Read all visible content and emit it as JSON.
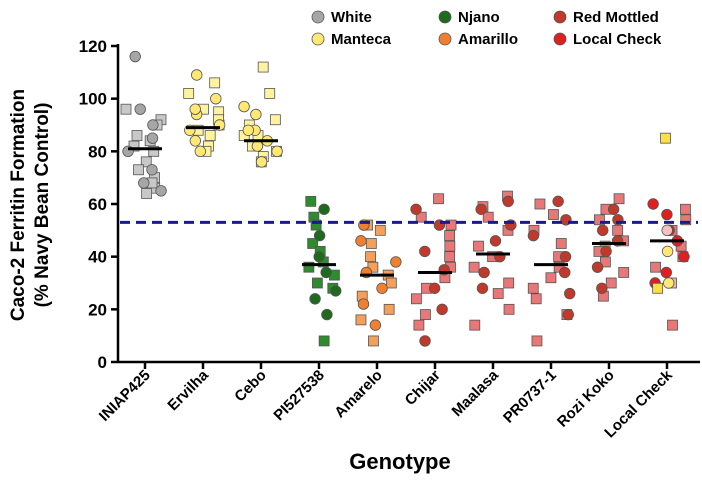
{
  "chart_data": {
    "type": "scatter",
    "title": "",
    "xlabel": "Genotype",
    "ylabel_line1": "Caco-2 Ferritin Formation",
    "ylabel_line2": "(% Navy Bean Control)",
    "ylim": [
      0,
      120
    ],
    "yticks": [
      0,
      20,
      40,
      60,
      80,
      100,
      120
    ],
    "reference_line": {
      "value": 53,
      "color": "#1a1a8c",
      "style": "dashed"
    },
    "legend": [
      {
        "label": "White",
        "color": "#a6a6a6"
      },
      {
        "label": "Njano",
        "color": "#1e6b1e"
      },
      {
        "label": "Red Mottled",
        "color": "#c0392b"
      },
      {
        "label": "Manteca",
        "color": "#ffe873"
      },
      {
        "label": "Amarillo",
        "color": "#f08030"
      },
      {
        "label": "Local Check",
        "color": "#e02020"
      }
    ],
    "categories": [
      "INIAP425",
      "Ervilha",
      "Cebo",
      "PI527538",
      "Amarelo",
      "Chijar",
      "Maalasa",
      "PR0737-1",
      "Rozi Koko",
      "Local Check"
    ],
    "series": [
      {
        "category": "INIAP425",
        "class": "White",
        "square_color": "#c8c8c8",
        "circle_color": "#a6a6a6",
        "mean": 81,
        "squares": [
          96,
          92,
          86,
          82,
          80,
          76,
          73,
          70,
          66,
          64,
          68,
          84,
          90
        ],
        "circles": [
          116,
          96,
          90,
          85,
          80,
          73,
          68,
          65
        ]
      },
      {
        "category": "Ervilha",
        "class": "Manteca",
        "square_color": "#fff3a0",
        "circle_color": "#ffe873",
        "mean": 89,
        "squares": [
          106,
          102,
          96,
          90,
          86,
          82,
          80,
          95,
          92,
          88
        ],
        "circles": [
          109,
          100,
          94,
          88,
          84,
          80,
          96,
          90
        ]
      },
      {
        "category": "Cebo",
        "class": "Manteca",
        "square_color": "#fff3a0",
        "circle_color": "#ffe873",
        "mean": 84,
        "squares": [
          112,
          102,
          92,
          86,
          82,
          78,
          76,
          86,
          90,
          80
        ],
        "circles": [
          97,
          94,
          88,
          84,
          80,
          76,
          88,
          82
        ]
      },
      {
        "category": "PI527538",
        "class": "Njano",
        "square_color": "#2e8b2e",
        "circle_color": "#1e6b1e",
        "mean": 37,
        "squares": [
          61,
          55,
          52,
          45,
          42,
          38,
          36,
          33,
          30,
          28,
          8
        ],
        "circles": [
          58,
          48,
          40,
          34,
          27,
          24,
          18
        ]
      },
      {
        "category": "Amarelo",
        "class": "Amarillo",
        "square_color": "#f5a05a",
        "circle_color": "#f08030",
        "mean": 33,
        "squares": [
          52,
          50,
          45,
          40,
          36,
          33,
          30,
          25,
          20,
          16,
          8
        ],
        "circles": [
          52,
          46,
          38,
          34,
          28,
          22,
          14
        ]
      },
      {
        "category": "Chijar",
        "class": "Red Mottled",
        "square_color": "#e87878",
        "circle_color": "#c0392b",
        "mean": 34,
        "squares": [
          62,
          55,
          52,
          48,
          44,
          40,
          36,
          32,
          28,
          24,
          18,
          14
        ],
        "circles": [
          58,
          52,
          42,
          35,
          28,
          20,
          8
        ]
      },
      {
        "category": "Maalasa",
        "class": "Red Mottled",
        "square_color": "#e87878",
        "circle_color": "#c0392b",
        "mean": 41,
        "squares": [
          63,
          59,
          55,
          50,
          44,
          40,
          36,
          30,
          26,
          20,
          14
        ],
        "circles": [
          61,
          58,
          52,
          46,
          40,
          34,
          28
        ]
      },
      {
        "category": "PR0737-1",
        "class": "Red Mottled",
        "square_color": "#e87878",
        "circle_color": "#c0392b",
        "mean": 37,
        "squares": [
          60,
          56,
          50,
          45,
          40,
          36,
          32,
          28,
          24,
          18,
          8
        ],
        "circles": [
          61,
          54,
          48,
          40,
          34,
          26,
          18
        ]
      },
      {
        "category": "Rozi Koko",
        "class": "Red Mottled",
        "square_color": "#e87878",
        "circle_color": "#c0392b",
        "mean": 45,
        "squares": [
          62,
          58,
          54,
          50,
          46,
          44,
          42,
          38,
          34,
          30,
          25
        ],
        "circles": [
          58,
          54,
          50,
          46,
          42,
          36,
          28
        ]
      },
      {
        "category": "Local Check",
        "class": "Local Check",
        "square_color": "#e87878",
        "circle_color": "#e02020",
        "mean": 46,
        "squares": [
          58,
          54,
          50,
          44,
          40,
          36,
          14
        ],
        "circles": [
          60,
          56,
          50,
          46,
          40,
          34,
          30
        ],
        "extra_squares": [
          {
            "value": 85,
            "color": "#ffe040"
          },
          {
            "value": 28,
            "color": "#ffe040"
          },
          {
            "value": 30,
            "color": "#f7b0b0"
          }
        ],
        "extra_circles": [
          {
            "value": 42,
            "color": "#ffe873"
          },
          {
            "value": 30,
            "color": "#ffe873"
          },
          {
            "value": 50,
            "color": "#f7c0c0"
          }
        ]
      }
    ]
  }
}
